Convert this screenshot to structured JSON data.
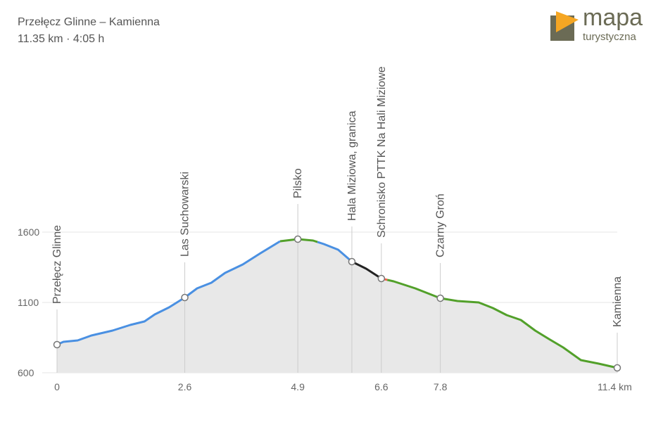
{
  "header": {
    "title": "Przełęcz Glinne – Kamienna",
    "subtitle": "11.35 km · 4:05 h"
  },
  "logo": {
    "line1": "mapa",
    "line2": "turystyczna"
  },
  "chart_data": {
    "type": "area",
    "xlabel": "km",
    "ylabel": "",
    "xlim": [
      0,
      11.4
    ],
    "ylim": [
      600,
      1600
    ],
    "y_ticks": [
      "600",
      "1100",
      "1600"
    ],
    "x_ticks": [
      {
        "v": 0,
        "label": "0"
      },
      {
        "v": 2.6,
        "label": "2.6"
      },
      {
        "v": 4.9,
        "label": "4.9"
      },
      {
        "v": 6.6,
        "label": "6.6"
      },
      {
        "v": 7.8,
        "label": "7.8"
      },
      {
        "v": 11.4,
        "label": "11.4 km"
      }
    ],
    "profile": [
      [
        0,
        800
      ],
      [
        0.13,
        820
      ],
      [
        0.42,
        830
      ],
      [
        0.7,
        865
      ],
      [
        1.13,
        900
      ],
      [
        1.49,
        940
      ],
      [
        1.78,
        965
      ],
      [
        1.99,
        1015
      ],
      [
        2.28,
        1065
      ],
      [
        2.6,
        1135
      ],
      [
        2.85,
        1200
      ],
      [
        3.14,
        1240
      ],
      [
        3.42,
        1310
      ],
      [
        3.78,
        1370
      ],
      [
        4.14,
        1450
      ],
      [
        4.54,
        1535
      ],
      [
        4.9,
        1550
      ],
      [
        5.21,
        1540
      ],
      [
        5.43,
        1515
      ],
      [
        5.72,
        1475
      ],
      [
        6.0,
        1390
      ],
      [
        6.29,
        1340
      ],
      [
        6.6,
        1270
      ],
      [
        6.85,
        1250
      ],
      [
        7.29,
        1200
      ],
      [
        7.8,
        1130
      ],
      [
        8.15,
        1110
      ],
      [
        8.58,
        1100
      ],
      [
        8.87,
        1060
      ],
      [
        9.15,
        1010
      ],
      [
        9.44,
        975
      ],
      [
        9.73,
        900
      ],
      [
        10.01,
        840
      ],
      [
        10.3,
        780
      ],
      [
        10.66,
        690
      ],
      [
        11.02,
        665
      ],
      [
        11.4,
        635
      ]
    ],
    "segments": [
      {
        "from": 0,
        "to": 4.54,
        "color": "#4a90e2"
      },
      {
        "from": 4.54,
        "to": 5.3,
        "color": "#52a02a"
      },
      {
        "from": 5.3,
        "to": 6.0,
        "color": "#4a90e2"
      },
      {
        "from": 6.0,
        "to": 6.6,
        "color": "#222222"
      },
      {
        "from": 6.6,
        "to": 6.72,
        "color": "#f0604a"
      },
      {
        "from": 6.72,
        "to": 11.4,
        "color": "#52a02a"
      }
    ],
    "waypoints": [
      {
        "km": 0,
        "elev": 800,
        "name": "Przełęcz Glinne"
      },
      {
        "km": 2.6,
        "elev": 1135,
        "name": "Las Suchowarski"
      },
      {
        "km": 4.9,
        "elev": 1550,
        "name": "Pilsko"
      },
      {
        "km": 6.0,
        "elev": 1390,
        "name": "Hala Miziowa, granica"
      },
      {
        "km": 6.6,
        "elev": 1270,
        "name": "Schronisko PTTK Na Hali Miziowe"
      },
      {
        "km": 7.8,
        "elev": 1130,
        "name": "Czarny Groń"
      },
      {
        "km": 11.4,
        "elev": 635,
        "name": "Kamienna"
      }
    ]
  }
}
